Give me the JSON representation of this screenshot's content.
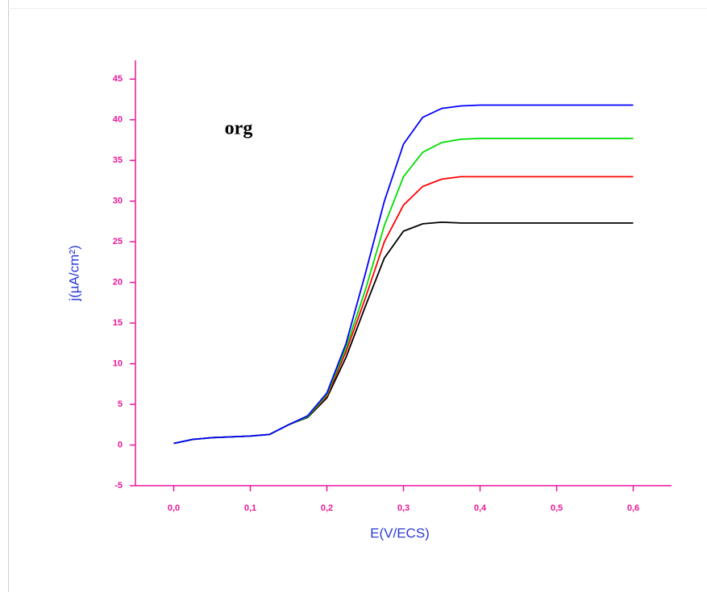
{
  "chart_data": {
    "type": "line",
    "annotation": "org",
    "x_label": "E(V/ECS)",
    "y_label": "j(µA/cm²)",
    "x": [
      0,
      0.025,
      0.05,
      0.075,
      0.1,
      0.125,
      0.15,
      0.175,
      0.2,
      0.225,
      0.25,
      0.275,
      0.3,
      0.325,
      0.35,
      0.375,
      0.4,
      0.45,
      0.5,
      0.55,
      0.6
    ],
    "series": [
      {
        "color": "#000000",
        "values": [
          0.2,
          0.7,
          0.9,
          1.0,
          1.1,
          1.3,
          2.5,
          3.4,
          5.8,
          10.8,
          17,
          23,
          26.3,
          27.2,
          27.4,
          27.3,
          27.3,
          27.3,
          27.3,
          27.3,
          27.3
        ]
      },
      {
        "color": "#ff0000",
        "values": [
          0.2,
          0.7,
          0.9,
          1.0,
          1.1,
          1.3,
          2.5,
          3.5,
          6,
          11.5,
          18,
          25,
          29.5,
          31.8,
          32.7,
          33,
          33,
          33,
          33,
          33,
          33
        ]
      },
      {
        "color": "#00dd00",
        "values": [
          0.2,
          0.7,
          0.9,
          1.0,
          1.1,
          1.3,
          2.5,
          3.5,
          6.2,
          12,
          19,
          27,
          33,
          36,
          37.2,
          37.6,
          37.7,
          37.7,
          37.7,
          37.7,
          37.7
        ]
      },
      {
        "color": "#0000ff",
        "values": [
          0.2,
          0.7,
          0.9,
          1.0,
          1.1,
          1.3,
          2.5,
          3.6,
          6.4,
          12.5,
          21,
          30,
          37,
          40.3,
          41.4,
          41.7,
          41.8,
          41.8,
          41.8,
          41.8,
          41.8
        ]
      }
    ],
    "xlim": [
      -0.05,
      0.65
    ],
    "ylim": [
      -5,
      47.3
    ],
    "xticks": [
      {
        "value": 0,
        "label": "0,0"
      },
      {
        "value": 0.1,
        "label": "0,1"
      },
      {
        "value": 0.2,
        "label": "0,2"
      },
      {
        "value": 0.3,
        "label": "0,3"
      },
      {
        "value": 0.4,
        "label": "0,4"
      },
      {
        "value": 0.5,
        "label": "0,5"
      },
      {
        "value": 0.6,
        "label": "0,6"
      }
    ],
    "yticks": [
      -5,
      0,
      5,
      10,
      15,
      20,
      25,
      30,
      35,
      40,
      45
    ],
    "axis_color": "#e8179a",
    "y_label_color": "#2a3bd8"
  }
}
